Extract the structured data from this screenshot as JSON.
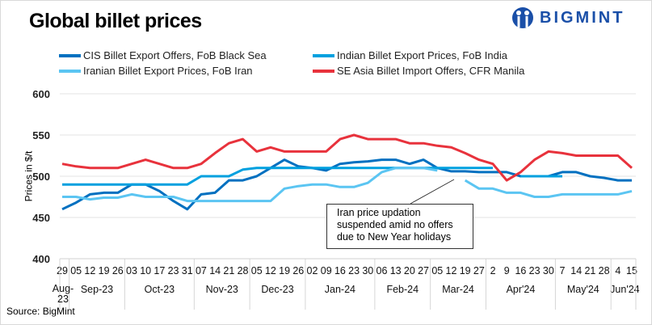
{
  "chart_data": {
    "type": "line",
    "title": "Global billet prices",
    "ylabel": "Prices in $/t",
    "xlabel": "",
    "ylim": [
      400,
      600
    ],
    "yticks": [
      400,
      450,
      500,
      550,
      600
    ],
    "grid": "horizontal",
    "legend_position": "top",
    "categories": [
      "29",
      "05",
      "12",
      "19",
      "26",
      "03",
      "10",
      "17",
      "23",
      "31",
      "07",
      "14",
      "21",
      "28",
      "05",
      "12",
      "19",
      "26",
      "02",
      "09",
      "16",
      "23",
      "30",
      "06",
      "13",
      "20",
      "27",
      "05",
      "12",
      "19",
      "27",
      "2",
      "9",
      "16",
      "23",
      "30",
      "7",
      "14",
      "21",
      "28",
      "4",
      "15"
    ],
    "month_groups": [
      {
        "label": "Aug-23",
        "count": 1
      },
      {
        "label": "Sep-23",
        "count": 4
      },
      {
        "label": "Oct-23",
        "count": 5
      },
      {
        "label": "Nov-23",
        "count": 4
      },
      {
        "label": "Dec-23",
        "count": 4
      },
      {
        "label": "Jan-24",
        "count": 5
      },
      {
        "label": "Feb-24",
        "count": 4
      },
      {
        "label": "Mar-24",
        "count": 4
      },
      {
        "label": "Apr'24",
        "count": 5
      },
      {
        "label": "May'24",
        "count": 4
      },
      {
        "label": "Jun'24",
        "count": 2
      }
    ],
    "series": [
      {
        "name": "CIS Billet Export Offers, FoB Black Sea",
        "color": "#0070C0",
        "values": [
          460,
          468,
          478,
          480,
          480,
          490,
          490,
          482,
          470,
          460,
          478,
          480,
          495,
          495,
          500,
          510,
          520,
          512,
          510,
          507,
          515,
          517,
          518,
          520,
          520,
          515,
          520,
          510,
          506,
          506,
          505,
          505,
          505,
          500,
          500,
          500,
          505,
          505,
          500,
          498,
          495,
          495
        ]
      },
      {
        "name": "Indian Billet Export Prices, FoB India",
        "color": "#00A0DF",
        "values": [
          490,
          490,
          490,
          490,
          490,
          490,
          490,
          490,
          490,
          490,
          500,
          500,
          500,
          508,
          510,
          510,
          510,
          510,
          510,
          510,
          510,
          510,
          510,
          510,
          510,
          510,
          510,
          510,
          510,
          510,
          510,
          510,
          null,
          500,
          500,
          500,
          500,
          null,
          null,
          null,
          null,
          null
        ]
      },
      {
        "name": "Iranian Billet Export Prices, FoB Iran",
        "color": "#5BC5F2",
        "values": [
          475,
          475,
          472,
          474,
          474,
          478,
          475,
          475,
          475,
          470,
          470,
          470,
          470,
          470,
          470,
          470,
          485,
          488,
          490,
          490,
          487,
          487,
          492,
          505,
          510,
          510,
          510,
          507,
          null,
          495,
          485,
          485,
          480,
          480,
          475,
          475,
          478,
          478,
          478,
          478,
          478,
          482
        ]
      },
      {
        "name": "SE Asia Billet Import Offers, CFR Manila",
        "color": "#E8323C",
        "values": [
          515,
          512,
          510,
          510,
          510,
          515,
          520,
          515,
          510,
          510,
          515,
          528,
          540,
          545,
          530,
          535,
          530,
          530,
          530,
          530,
          545,
          550,
          545,
          545,
          545,
          540,
          540,
          537,
          535,
          528,
          520,
          515,
          495,
          505,
          520,
          530,
          528,
          525,
          525,
          525,
          525,
          510
        ]
      }
    ],
    "annotation": "Iran price updation suspended amid no offers due to New Year holidays"
  },
  "annotation_lines": [
    "Iran price updation",
    "suspended  amid no offers",
    "due to New Year holidays"
  ],
  "source": "Source:  BigMint",
  "logo_text": "BIGMINT"
}
